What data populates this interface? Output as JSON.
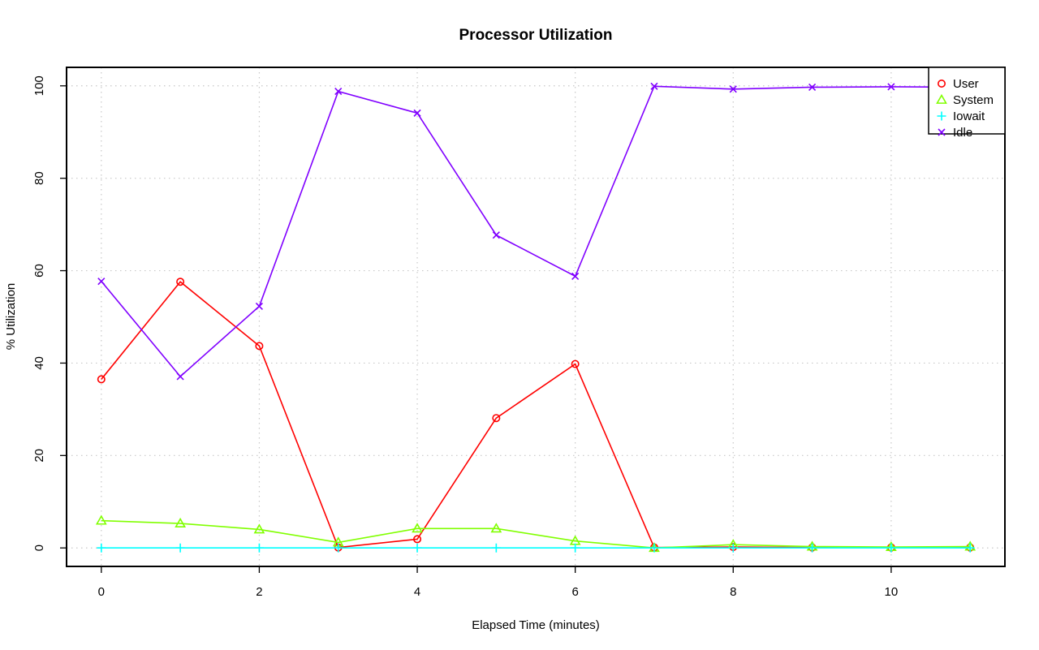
{
  "chart_data": {
    "type": "line",
    "title": "Processor Utilization",
    "xlabel": "Elapsed Time (minutes)",
    "ylabel": "% Utilization",
    "xlim": [
      -0.44,
      11.44
    ],
    "ylim": [
      -4,
      104
    ],
    "x_ticks": [
      0,
      2,
      4,
      6,
      8,
      10
    ],
    "y_ticks": [
      0,
      20,
      40,
      60,
      80,
      100
    ],
    "grid": true,
    "legend_position": "top-right",
    "x": [
      0,
      1,
      2,
      3,
      4,
      5,
      6,
      7,
      8,
      9,
      10,
      11
    ],
    "series": [
      {
        "name": "User",
        "color": "#ff0000",
        "marker": "circle",
        "values": [
          36.5,
          57.6,
          43.7,
          0.1,
          1.9,
          28.1,
          39.8,
          0.1,
          0.2,
          0.1,
          0.1,
          0.1
        ]
      },
      {
        "name": "System",
        "color": "#80ff00",
        "marker": "triangle",
        "values": [
          5.9,
          5.3,
          4.0,
          1.2,
          4.2,
          4.2,
          1.5,
          0.0,
          0.7,
          0.3,
          0.2,
          0.3
        ]
      },
      {
        "name": "Iowait",
        "color": "#00ffff",
        "marker": "plus",
        "values": [
          0,
          0,
          0,
          0,
          0,
          0,
          0,
          0,
          0,
          0,
          0,
          0
        ]
      },
      {
        "name": "Idle",
        "color": "#8000ff",
        "marker": "x",
        "values": [
          57.7,
          37.1,
          52.3,
          98.8,
          94.1,
          67.7,
          58.8,
          99.9,
          99.3,
          99.7,
          99.8,
          99.7
        ]
      }
    ]
  }
}
